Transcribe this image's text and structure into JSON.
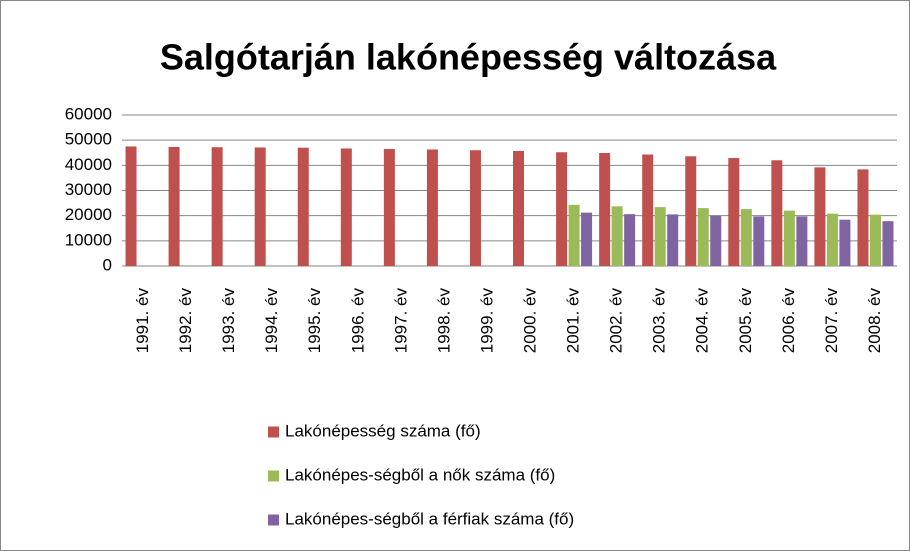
{
  "chart_data": {
    "type": "bar",
    "title": "Salgótarján lakónépesség változása",
    "categories": [
      "1991. év",
      "1992. év",
      "1993. év",
      "1994. év",
      "1995. év",
      "1996. év",
      "1997. év",
      "1998. év",
      "1999. év",
      "2000. év",
      "2001. év",
      "2002. év",
      "2003. év",
      "2004. év",
      "2005. év",
      "2006. év",
      "2007. év",
      "2008. év"
    ],
    "series": [
      {
        "name": "Lakónépesség száma  (fő)",
        "color": "#c0504d",
        "values": [
          47500,
          47300,
          47200,
          47100,
          47000,
          46700,
          46500,
          46300,
          46000,
          45700,
          45200,
          44900,
          44300,
          43600,
          42900,
          42000,
          39200,
          38400
        ]
      },
      {
        "name": "Lakónépes-ségből a nők száma  (fő)",
        "color": "#9bbb59",
        "values": [
          null,
          null,
          null,
          null,
          null,
          null,
          null,
          null,
          null,
          null,
          24300,
          23700,
          23400,
          23000,
          22600,
          22000,
          20800,
          20400
        ]
      },
      {
        "name": "Lakónépes-ségből a férfiak száma  (fő)",
        "color": "#8064a2",
        "values": [
          null,
          null,
          null,
          null,
          null,
          null,
          null,
          null,
          null,
          null,
          21200,
          20600,
          20500,
          20000,
          19700,
          19700,
          18400,
          17800
        ]
      }
    ],
    "ylim": [
      0,
      60000
    ],
    "yticks": [
      0,
      10000,
      20000,
      30000,
      40000,
      50000,
      60000
    ],
    "grid": true,
    "legend": "bottom"
  }
}
